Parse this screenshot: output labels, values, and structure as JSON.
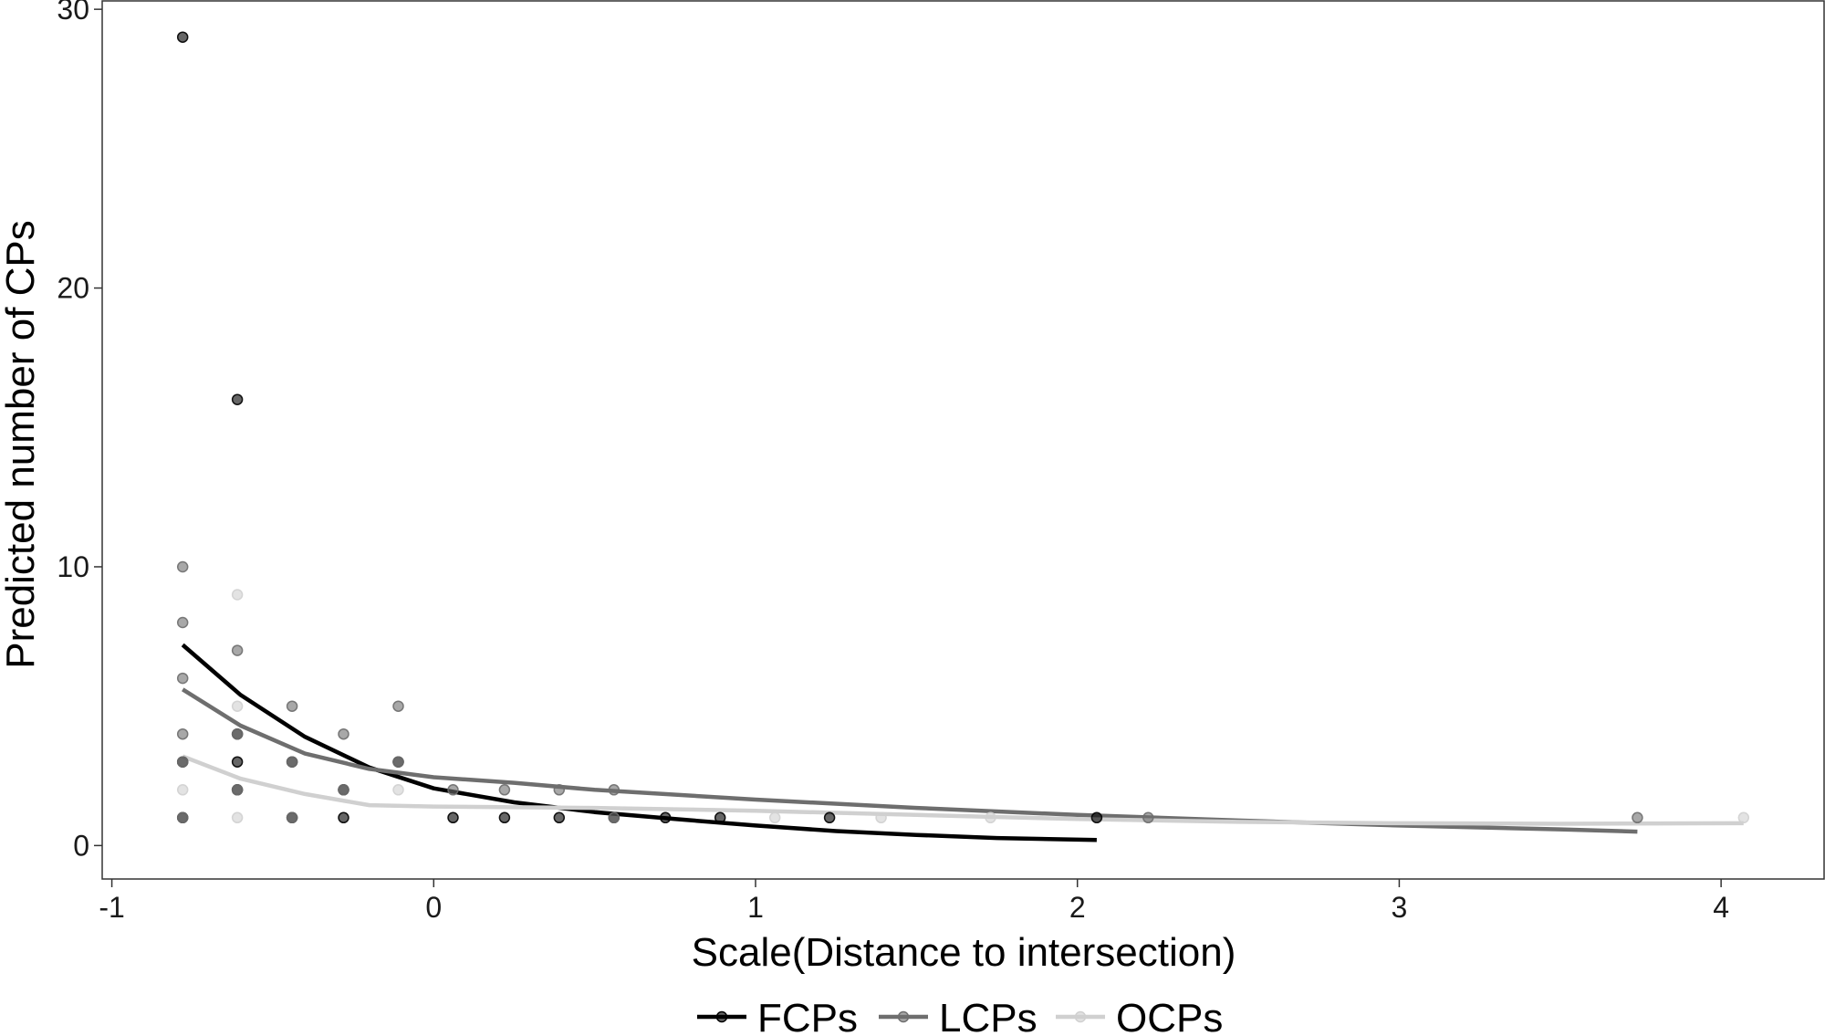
{
  "chart_data": {
    "type": "scatter",
    "xlabel": "Scale(Distance to intersection)",
    "ylabel": "Predicted number of CPs",
    "xlim": [
      -1.03,
      4.32
    ],
    "ylim": [
      -1.2,
      30.3
    ],
    "x_ticks": [
      -1,
      0,
      1,
      2,
      3,
      4
    ],
    "x_tick_labels": [
      "-1",
      "0",
      "1",
      "2",
      "3",
      "4"
    ],
    "y_ticks": [
      0,
      10,
      20,
      30
    ],
    "y_tick_labels": [
      "0",
      "10",
      "20",
      "30"
    ],
    "grid": false,
    "legend_position": "bottom",
    "series": [
      {
        "name": "FCPs",
        "color": "#000000",
        "points": [
          {
            "x": -0.78,
            "y": 29
          },
          {
            "x": -0.78,
            "y": 3
          },
          {
            "x": -0.78,
            "y": 1
          },
          {
            "x": -0.61,
            "y": 16
          },
          {
            "x": -0.61,
            "y": 4
          },
          {
            "x": -0.61,
            "y": 3
          },
          {
            "x": -0.61,
            "y": 2
          },
          {
            "x": -0.44,
            "y": 3
          },
          {
            "x": -0.44,
            "y": 1
          },
          {
            "x": -0.28,
            "y": 2
          },
          {
            "x": -0.28,
            "y": 1
          },
          {
            "x": -0.11,
            "y": 3
          },
          {
            "x": 0.06,
            "y": 1
          },
          {
            "x": 0.22,
            "y": 1
          },
          {
            "x": 0.39,
            "y": 1
          },
          {
            "x": 0.56,
            "y": 1
          },
          {
            "x": 0.72,
            "y": 1
          },
          {
            "x": 0.89,
            "y": 1
          },
          {
            "x": 1.23,
            "y": 1
          },
          {
            "x": 2.06,
            "y": 1
          }
        ],
        "fit": [
          {
            "x": -0.78,
            "y": 7.2
          },
          {
            "x": -0.6,
            "y": 5.4
          },
          {
            "x": -0.4,
            "y": 3.9
          },
          {
            "x": -0.2,
            "y": 2.8
          },
          {
            "x": 0.0,
            "y": 2.05
          },
          {
            "x": 0.25,
            "y": 1.55
          },
          {
            "x": 0.5,
            "y": 1.2
          },
          {
            "x": 0.75,
            "y": 0.95
          },
          {
            "x": 1.0,
            "y": 0.72
          },
          {
            "x": 1.25,
            "y": 0.52
          },
          {
            "x": 1.5,
            "y": 0.38
          },
          {
            "x": 1.75,
            "y": 0.27
          },
          {
            "x": 2.06,
            "y": 0.2
          }
        ]
      },
      {
        "name": "LCPs",
        "color": "#6e6e6e",
        "points": [
          {
            "x": -0.78,
            "y": 10
          },
          {
            "x": -0.78,
            "y": 8
          },
          {
            "x": -0.78,
            "y": 6
          },
          {
            "x": -0.78,
            "y": 4
          },
          {
            "x": -0.78,
            "y": 3
          },
          {
            "x": -0.78,
            "y": 1
          },
          {
            "x": -0.61,
            "y": 7
          },
          {
            "x": -0.61,
            "y": 4
          },
          {
            "x": -0.61,
            "y": 2
          },
          {
            "x": -0.44,
            "y": 5
          },
          {
            "x": -0.44,
            "y": 3
          },
          {
            "x": -0.44,
            "y": 1
          },
          {
            "x": -0.28,
            "y": 4
          },
          {
            "x": -0.28,
            "y": 2
          },
          {
            "x": -0.11,
            "y": 5
          },
          {
            "x": -0.11,
            "y": 3
          },
          {
            "x": 0.06,
            "y": 2
          },
          {
            "x": 0.22,
            "y": 2
          },
          {
            "x": 0.39,
            "y": 2
          },
          {
            "x": 0.56,
            "y": 2
          },
          {
            "x": 0.56,
            "y": 1
          },
          {
            "x": 2.22,
            "y": 1
          },
          {
            "x": 3.74,
            "y": 1
          }
        ],
        "fit": [
          {
            "x": -0.78,
            "y": 5.6
          },
          {
            "x": -0.6,
            "y": 4.3
          },
          {
            "x": -0.4,
            "y": 3.3
          },
          {
            "x": -0.2,
            "y": 2.75
          },
          {
            "x": 0.0,
            "y": 2.45
          },
          {
            "x": 0.25,
            "y": 2.25
          },
          {
            "x": 0.5,
            "y": 2.0
          },
          {
            "x": 1.0,
            "y": 1.65
          },
          {
            "x": 1.5,
            "y": 1.35
          },
          {
            "x": 2.0,
            "y": 1.1
          },
          {
            "x": 2.5,
            "y": 0.9
          },
          {
            "x": 3.0,
            "y": 0.72
          },
          {
            "x": 3.5,
            "y": 0.58
          },
          {
            "x": 3.74,
            "y": 0.5
          }
        ]
      },
      {
        "name": "OCPs",
        "color": "#d0d0d0",
        "points": [
          {
            "x": -0.78,
            "y": 2
          },
          {
            "x": -0.61,
            "y": 9
          },
          {
            "x": -0.61,
            "y": 5
          },
          {
            "x": -0.61,
            "y": 1
          },
          {
            "x": -0.11,
            "y": 2
          },
          {
            "x": 1.06,
            "y": 1
          },
          {
            "x": 1.39,
            "y": 1
          },
          {
            "x": 1.73,
            "y": 1
          },
          {
            "x": 4.07,
            "y": 1
          }
        ],
        "fit": [
          {
            "x": -0.78,
            "y": 3.2
          },
          {
            "x": -0.6,
            "y": 2.4
          },
          {
            "x": -0.4,
            "y": 1.85
          },
          {
            "x": -0.2,
            "y": 1.45
          },
          {
            "x": 0.0,
            "y": 1.4
          },
          {
            "x": 0.5,
            "y": 1.35
          },
          {
            "x": 1.0,
            "y": 1.25
          },
          {
            "x": 1.5,
            "y": 1.1
          },
          {
            "x": 2.0,
            "y": 0.95
          },
          {
            "x": 2.5,
            "y": 0.85
          },
          {
            "x": 3.0,
            "y": 0.8
          },
          {
            "x": 3.5,
            "y": 0.78
          },
          {
            "x": 4.07,
            "y": 0.8
          }
        ]
      }
    ]
  }
}
